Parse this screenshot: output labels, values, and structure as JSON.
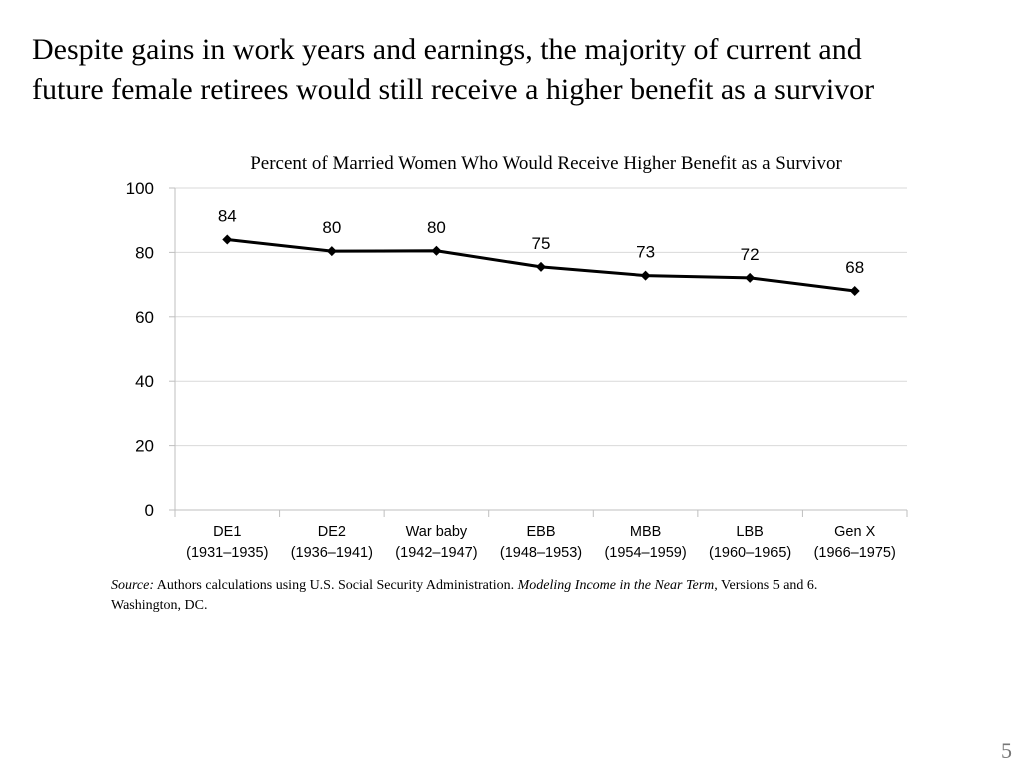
{
  "slide": {
    "title": "Despite gains in work years and earnings, the majority of current and\nfuture female retirees would  still receive a higher benefit as a survivor",
    "page_number": "5"
  },
  "source": {
    "prefix": "Source:",
    "text1": " Authors calculations using U.S. Social Security Administration. ",
    "publication": "Modeling Income in the Near Term",
    "text2": ", Versions 5 and 6. Washington, DC."
  },
  "chart_data": {
    "type": "line",
    "title": "Percent of Married Women Who Would Receive Higher Benefit as a Survivor",
    "categories": [
      [
        "DE1",
        "(1931–1935)"
      ],
      [
        "DE2",
        "(1936–1941)"
      ],
      [
        "War baby",
        "(1942–1947)"
      ],
      [
        "EBB",
        "(1948–1953)"
      ],
      [
        "MBB",
        "(1954–1959)"
      ],
      [
        "LBB",
        "(1960–1965)"
      ],
      [
        "Gen X",
        "(1966–1975)"
      ]
    ],
    "series": [
      {
        "values": [
          84,
          80.4,
          80.5,
          75.5,
          72.8,
          72.1,
          68
        ]
      }
    ],
    "data_labels": [
      "84",
      "80",
      "80",
      "75",
      "73",
      "72",
      "68"
    ],
    "ylim": [
      0,
      100
    ],
    "yticks": [
      0,
      20,
      40,
      60,
      80,
      100
    ],
    "xlabel": "",
    "ylabel": "",
    "grid": true,
    "legend": "none",
    "colors": {
      "line": "#000000",
      "grid": "#d9d9d9",
      "axis": "#bfbfbf"
    }
  }
}
